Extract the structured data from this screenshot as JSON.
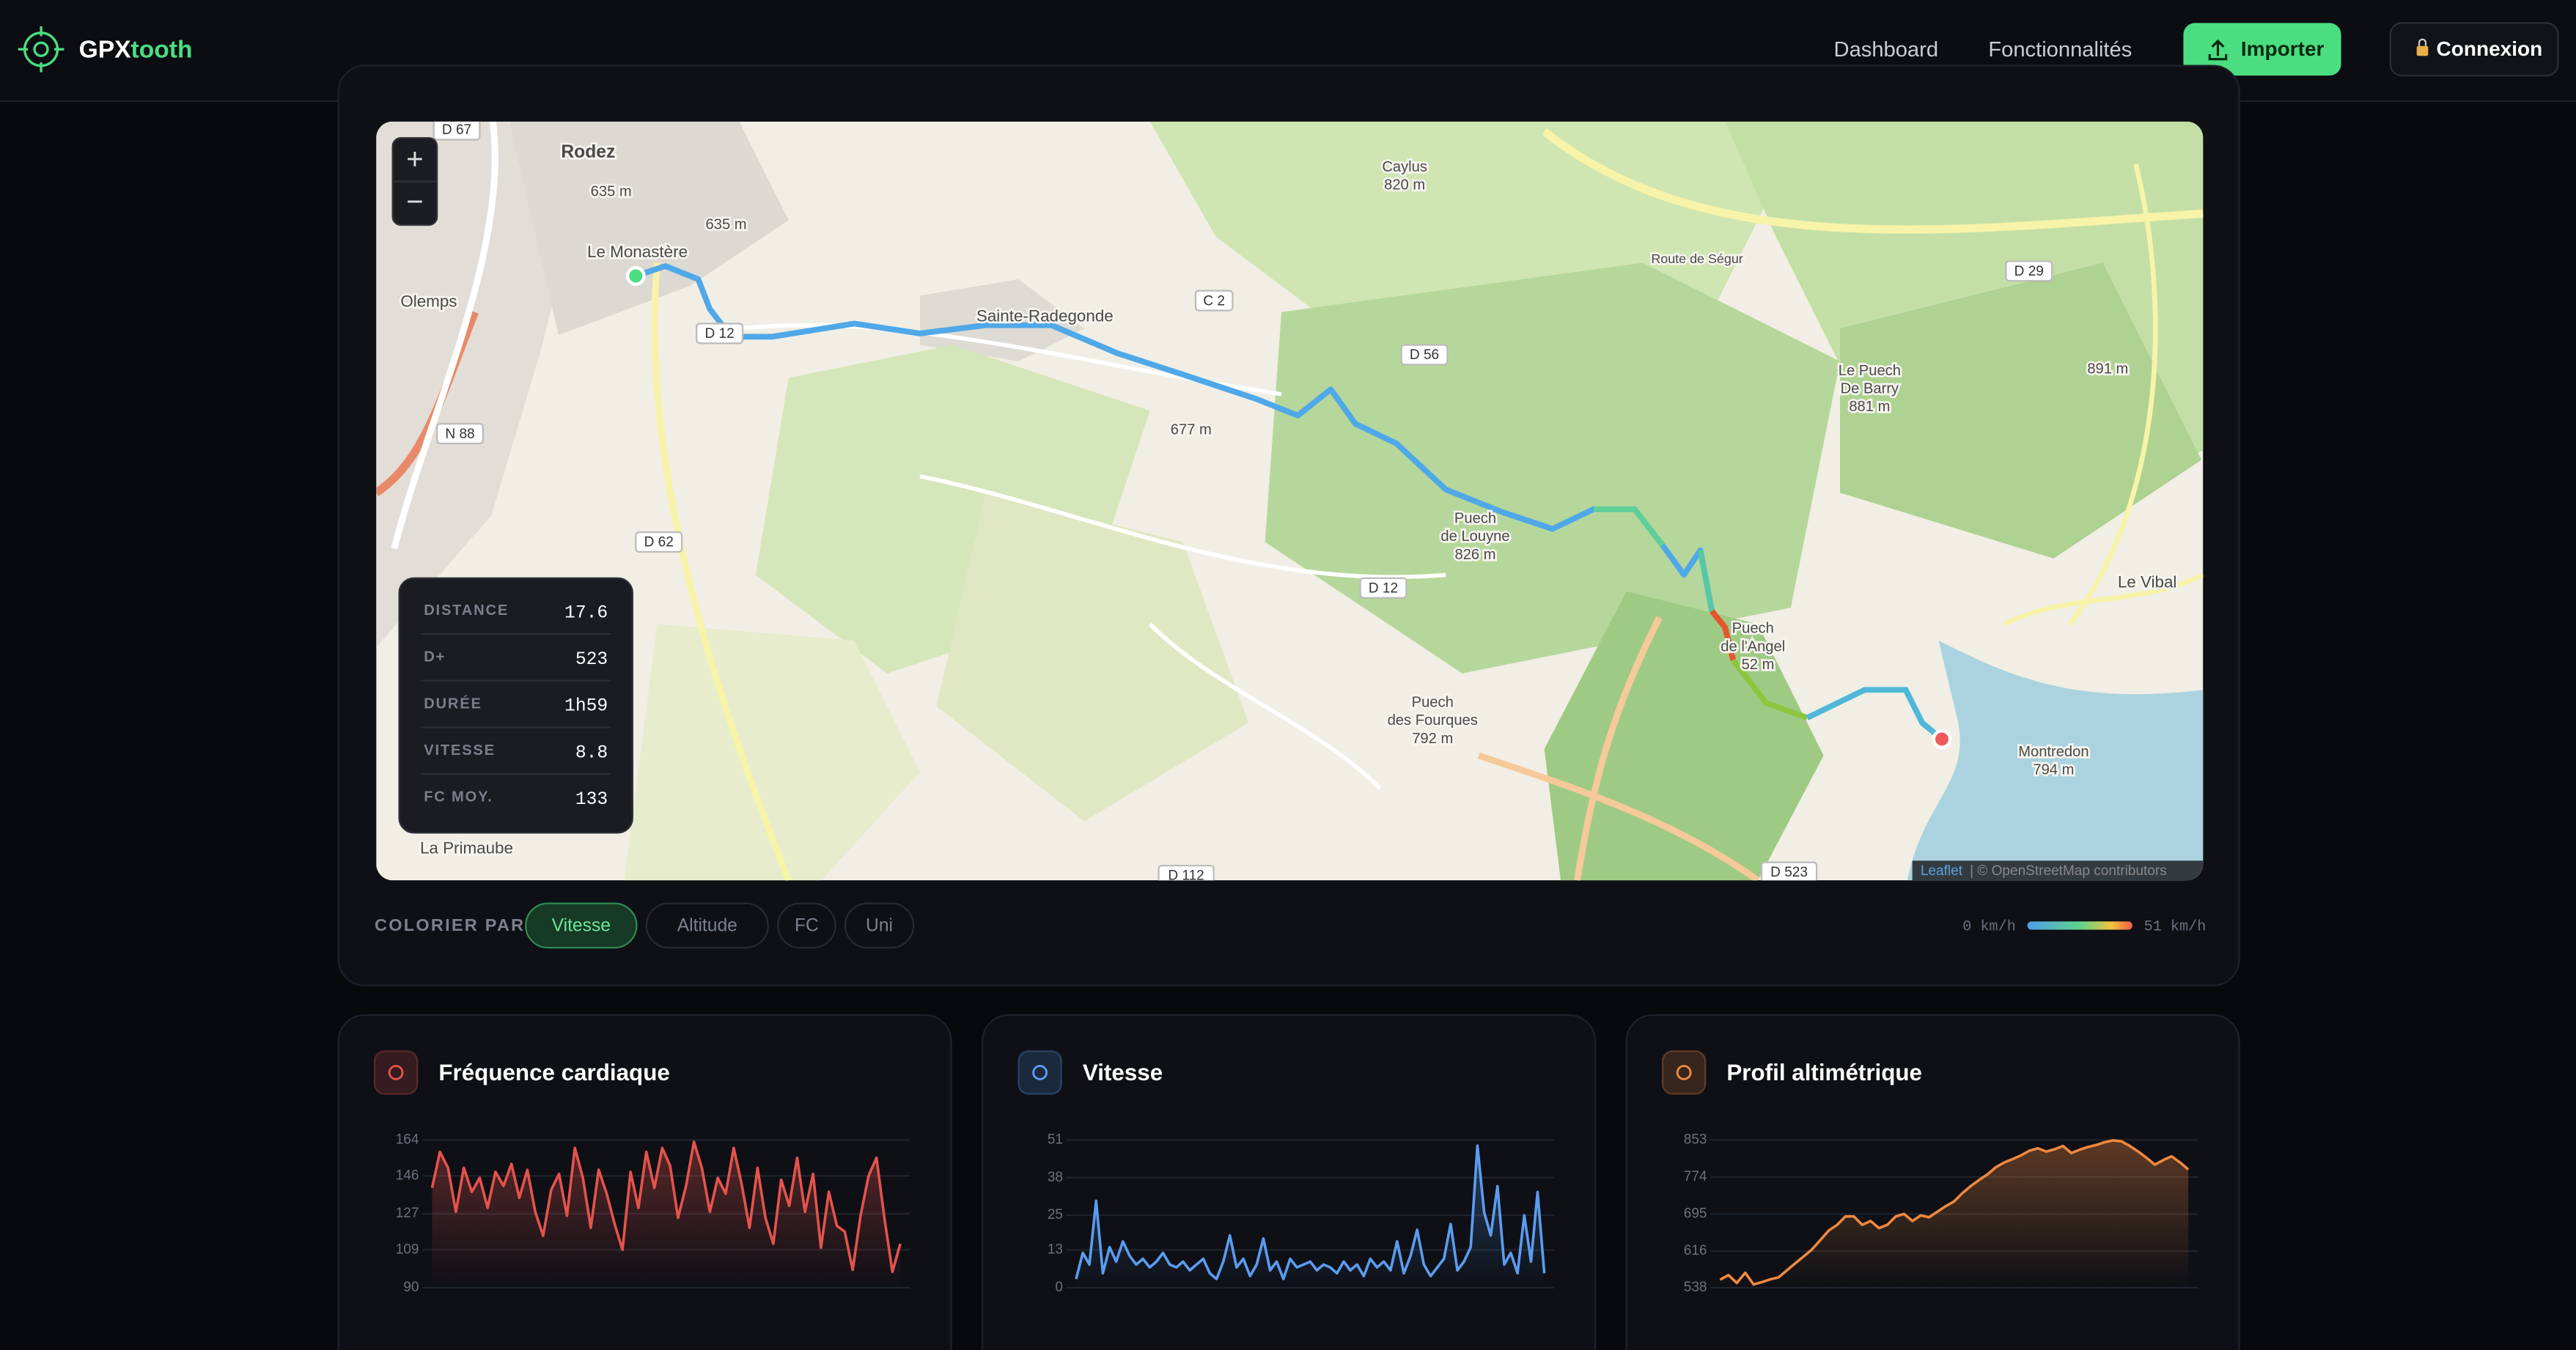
{
  "header": {
    "brand_a": "GPX",
    "brand_b": "tooth",
    "nav": [
      "Dashboard",
      "Fonctionnalités"
    ],
    "import_button": "Importer",
    "login_button": "Connexion"
  },
  "map": {
    "zoom_in": "+",
    "zoom_out": "−",
    "places": [
      "Rodez",
      "635 m",
      "635 m",
      "Le Monastère",
      "Olemps",
      "Sainte-Radegonde",
      "Caylus",
      "820 m",
      "677 m",
      "Puech",
      "de Louyne",
      "826 m",
      "Puech",
      "des Fourques",
      "792 m",
      "Puech",
      "de l'Angel",
      "52 m",
      "Le Puech",
      "De Barry",
      "881 m",
      "891 m",
      "Le Vibal",
      "Montredon",
      "794 m",
      "La Primaube",
      "Route de Ségur"
    ],
    "roads": [
      "D 67",
      "C 2",
      "D 12",
      "N 88",
      "D 62",
      "D 56",
      "D 12",
      "D 29",
      "D 523",
      "D 112"
    ],
    "attribution_link": "Leaflet",
    "attribution": "| © OpenStreetMap contributors"
  },
  "stats": [
    {
      "label": "DISTANCE",
      "value": 17.6
    },
    {
      "label": "D+",
      "value": 523
    },
    {
      "label": "DURÉE",
      "value": "1h59"
    },
    {
      "label": "VITESSE",
      "value": 8.8
    },
    {
      "label": "FC MOY.",
      "value": 133
    }
  ],
  "color_by": {
    "label": "COLORIER PAR",
    "options": [
      "Vitesse",
      "Altitude",
      "FC",
      "Uni"
    ],
    "active": 0
  },
  "speed_legend": {
    "min": "0 km/h",
    "max": "51 km/h"
  },
  "chart_data": [
    {
      "type": "area",
      "title": "Fréquence cardiaque",
      "color": "#e5534b",
      "ylim": [
        90,
        164
      ],
      "yticks": [
        90,
        109,
        127,
        146,
        164
      ],
      "values": [
        140,
        158,
        150,
        128,
        150,
        138,
        145,
        130,
        148,
        141,
        152,
        135,
        149,
        128,
        116,
        139,
        147,
        126,
        160,
        145,
        120,
        149,
        137,
        122,
        109,
        148,
        130,
        158,
        140,
        160,
        151,
        125,
        141,
        163,
        150,
        128,
        145,
        137,
        160,
        142,
        120,
        150,
        125,
        112,
        144,
        131,
        155,
        128,
        147,
        110,
        138,
        121,
        118,
        99,
        126,
        146,
        155,
        125,
        98,
        112
      ]
    },
    {
      "type": "area",
      "title": "Vitesse",
      "color": "#5b9cf0",
      "ylim": [
        0,
        51
      ],
      "yticks": [
        0,
        13,
        25,
        38,
        51
      ],
      "values": [
        3,
        12,
        8,
        30,
        5,
        14,
        9,
        16,
        11,
        8,
        10,
        7,
        9,
        12,
        8,
        7,
        9,
        6,
        8,
        10,
        5,
        3,
        9,
        18,
        7,
        10,
        4,
        8,
        17,
        6,
        9,
        3,
        10,
        7,
        8,
        9,
        6,
        8,
        7,
        5,
        9,
        6,
        8,
        4,
        10,
        7,
        9,
        6,
        16,
        5,
        11,
        20,
        8,
        4,
        7,
        10,
        22,
        6,
        9,
        14,
        49,
        26,
        18,
        35,
        8,
        12,
        5,
        25,
        9,
        33,
        5
      ]
    },
    {
      "type": "area",
      "title": "Profil altimétrique",
      "color": "#f0883e",
      "ylim": [
        538,
        853
      ],
      "yticks": [
        538,
        616,
        695,
        774,
        853
      ],
      "values": [
        555,
        565,
        548,
        570,
        545,
        550,
        556,
        560,
        575,
        590,
        605,
        620,
        640,
        660,
        672,
        690,
        690,
        672,
        680,
        665,
        672,
        690,
        695,
        680,
        692,
        688,
        700,
        712,
        722,
        740,
        755,
        768,
        780,
        795,
        805,
        812,
        820,
        830,
        835,
        828,
        833,
        840,
        825,
        832,
        838,
        842,
        848,
        852,
        850,
        840,
        828,
        815,
        800,
        810,
        818,
        805,
        790
      ]
    }
  ]
}
